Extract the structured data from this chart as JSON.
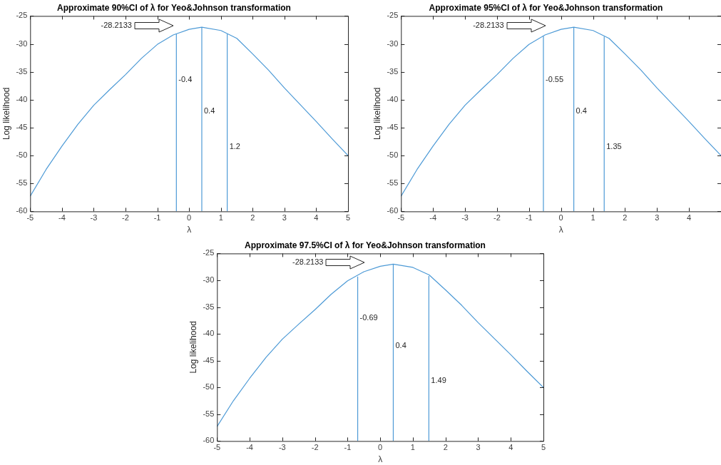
{
  "chart_data": [
    {
      "type": "line",
      "title": "Approximate 90%CI of λ for Yeo&Johnson transformation",
      "xlabel": "λ",
      "ylabel": "Log likelihood",
      "xlim": [
        -5,
        5
      ],
      "xticks": [
        -5,
        -4,
        -3,
        -2,
        -1,
        0,
        1,
        2,
        3,
        4,
        5
      ],
      "ylim": [
        -60,
        -25
      ],
      "yticks": [
        -60,
        -55,
        -50,
        -45,
        -40,
        -35,
        -30,
        -25
      ],
      "grid": false,
      "series": [
        {
          "color": "#4d9ad6",
          "x": [
            -5,
            -4.5,
            -4,
            -3.5,
            -3,
            -2.5,
            -2,
            -1.5,
            -1,
            -0.5,
            0,
            0.4,
            1,
            1.5,
            2,
            2.5,
            3,
            3.5,
            4,
            4.5,
            5
          ],
          "values": [
            -57.3,
            -52.5,
            -48.3,
            -44.4,
            -41,
            -38.2,
            -35.5,
            -32.6,
            -30.1,
            -28.4,
            -27.4,
            -27,
            -27.6,
            -29,
            -31.8,
            -34.7,
            -37.9,
            -40.9,
            -43.9,
            -47,
            -50
          ]
        },
        {
          "color": "#4d9ad6",
          "x": [
            -0.4,
            -0.4
          ],
          "values": [
            -60,
            -28.2
          ]
        },
        {
          "color": "#4d9ad6",
          "x": [
            0.4,
            0.4
          ],
          "values": [
            -60,
            -27
          ]
        },
        {
          "color": "#4d9ad6",
          "x": [
            1.2,
            1.2
          ],
          "values": [
            -60,
            -28.2
          ]
        }
      ],
      "annotations": [
        {
          "text": "-0.4",
          "x": -0.4,
          "y": -36.5
        },
        {
          "text": "0.4",
          "x": 0.4,
          "y": -42
        },
        {
          "text": "1.2",
          "x": 1.2,
          "y": -48.5
        },
        "-28.2133"
      ]
    },
    {
      "type": "line",
      "title": "Approximate 95%CI of λ for Yeo&Johnson transformation",
      "xlabel": "λ",
      "ylabel": "Log likelihood",
      "xlim": [
        -5,
        5
      ],
      "xticks": [
        -5,
        -4,
        -3,
        -2,
        -1,
        0,
        1,
        2,
        3,
        4
      ],
      "ylim": [
        -60,
        -25
      ],
      "yticks": [
        -60,
        -55,
        -50,
        -45,
        -40,
        -35,
        -30,
        -25
      ],
      "grid": false,
      "series": [
        {
          "color": "#4d9ad6",
          "x": [
            -5,
            -4.5,
            -4,
            -3.5,
            -3,
            -2.5,
            -2,
            -1.5,
            -1,
            -0.5,
            0,
            0.4,
            1,
            1.5,
            2,
            2.5,
            3,
            3.5,
            4,
            4.5,
            5
          ],
          "values": [
            -57.3,
            -52.5,
            -48.3,
            -44.4,
            -41,
            -38.2,
            -35.5,
            -32.6,
            -30.1,
            -28.4,
            -27.4,
            -27,
            -27.6,
            -29,
            -31.8,
            -34.7,
            -37.9,
            -40.9,
            -43.9,
            -47,
            -50
          ]
        },
        {
          "color": "#4d9ad6",
          "x": [
            -0.55,
            -0.55
          ],
          "values": [
            -60,
            -28.6
          ]
        },
        {
          "color": "#4d9ad6",
          "x": [
            0.4,
            0.4
          ],
          "values": [
            -60,
            -27
          ]
        },
        {
          "color": "#4d9ad6",
          "x": [
            1.35,
            1.35
          ],
          "values": [
            -60,
            -28.7
          ]
        }
      ],
      "annotations": [
        {
          "text": "-0.55",
          "x": -0.55,
          "y": -36.5
        },
        {
          "text": "0.4",
          "x": 0.4,
          "y": -42
        },
        {
          "text": "1.35",
          "x": 1.35,
          "y": -48.5
        },
        "-28.2133"
      ]
    },
    {
      "type": "line",
      "title": "Approximate 97.5%CI of λ for Yeo&Johnson transformation",
      "xlabel": "λ",
      "ylabel": "Log likelihood",
      "xlim": [
        -5,
        5
      ],
      "xticks": [
        -5,
        -4,
        -3,
        -2,
        -1,
        0,
        1,
        2,
        3,
        4,
        5
      ],
      "ylim": [
        -60,
        -25
      ],
      "yticks": [
        -60,
        -55,
        -50,
        -45,
        -40,
        -35,
        -30,
        -25
      ],
      "grid": false,
      "series": [
        {
          "color": "#4d9ad6",
          "x": [
            -5,
            -4.5,
            -4,
            -3.5,
            -3,
            -2.5,
            -2,
            -1.5,
            -1,
            -0.5,
            0,
            0.4,
            1,
            1.5,
            2,
            2.5,
            3,
            3.5,
            4,
            4.5,
            5
          ],
          "values": [
            -57.3,
            -52.5,
            -48.3,
            -44.4,
            -41,
            -38.2,
            -35.5,
            -32.6,
            -30.1,
            -28.4,
            -27.4,
            -27,
            -27.6,
            -29,
            -31.8,
            -34.7,
            -37.9,
            -40.9,
            -43.9,
            -47,
            -50
          ]
        },
        {
          "color": "#4d9ad6",
          "x": [
            -0.69,
            -0.69
          ],
          "values": [
            -60,
            -29.3
          ]
        },
        {
          "color": "#4d9ad6",
          "x": [
            0.4,
            0.4
          ],
          "values": [
            -60,
            -27
          ]
        },
        {
          "color": "#4d9ad6",
          "x": [
            1.49,
            1.49
          ],
          "values": [
            -60,
            -29.2
          ]
        }
      ],
      "annotations": [
        {
          "text": "-0.69",
          "x": -0.69,
          "y": -37
        },
        {
          "text": "0.4",
          "x": 0.4,
          "y": -42.2
        },
        {
          "text": "1.49",
          "x": 1.49,
          "y": -48.7
        },
        "-28.2133"
      ]
    }
  ]
}
